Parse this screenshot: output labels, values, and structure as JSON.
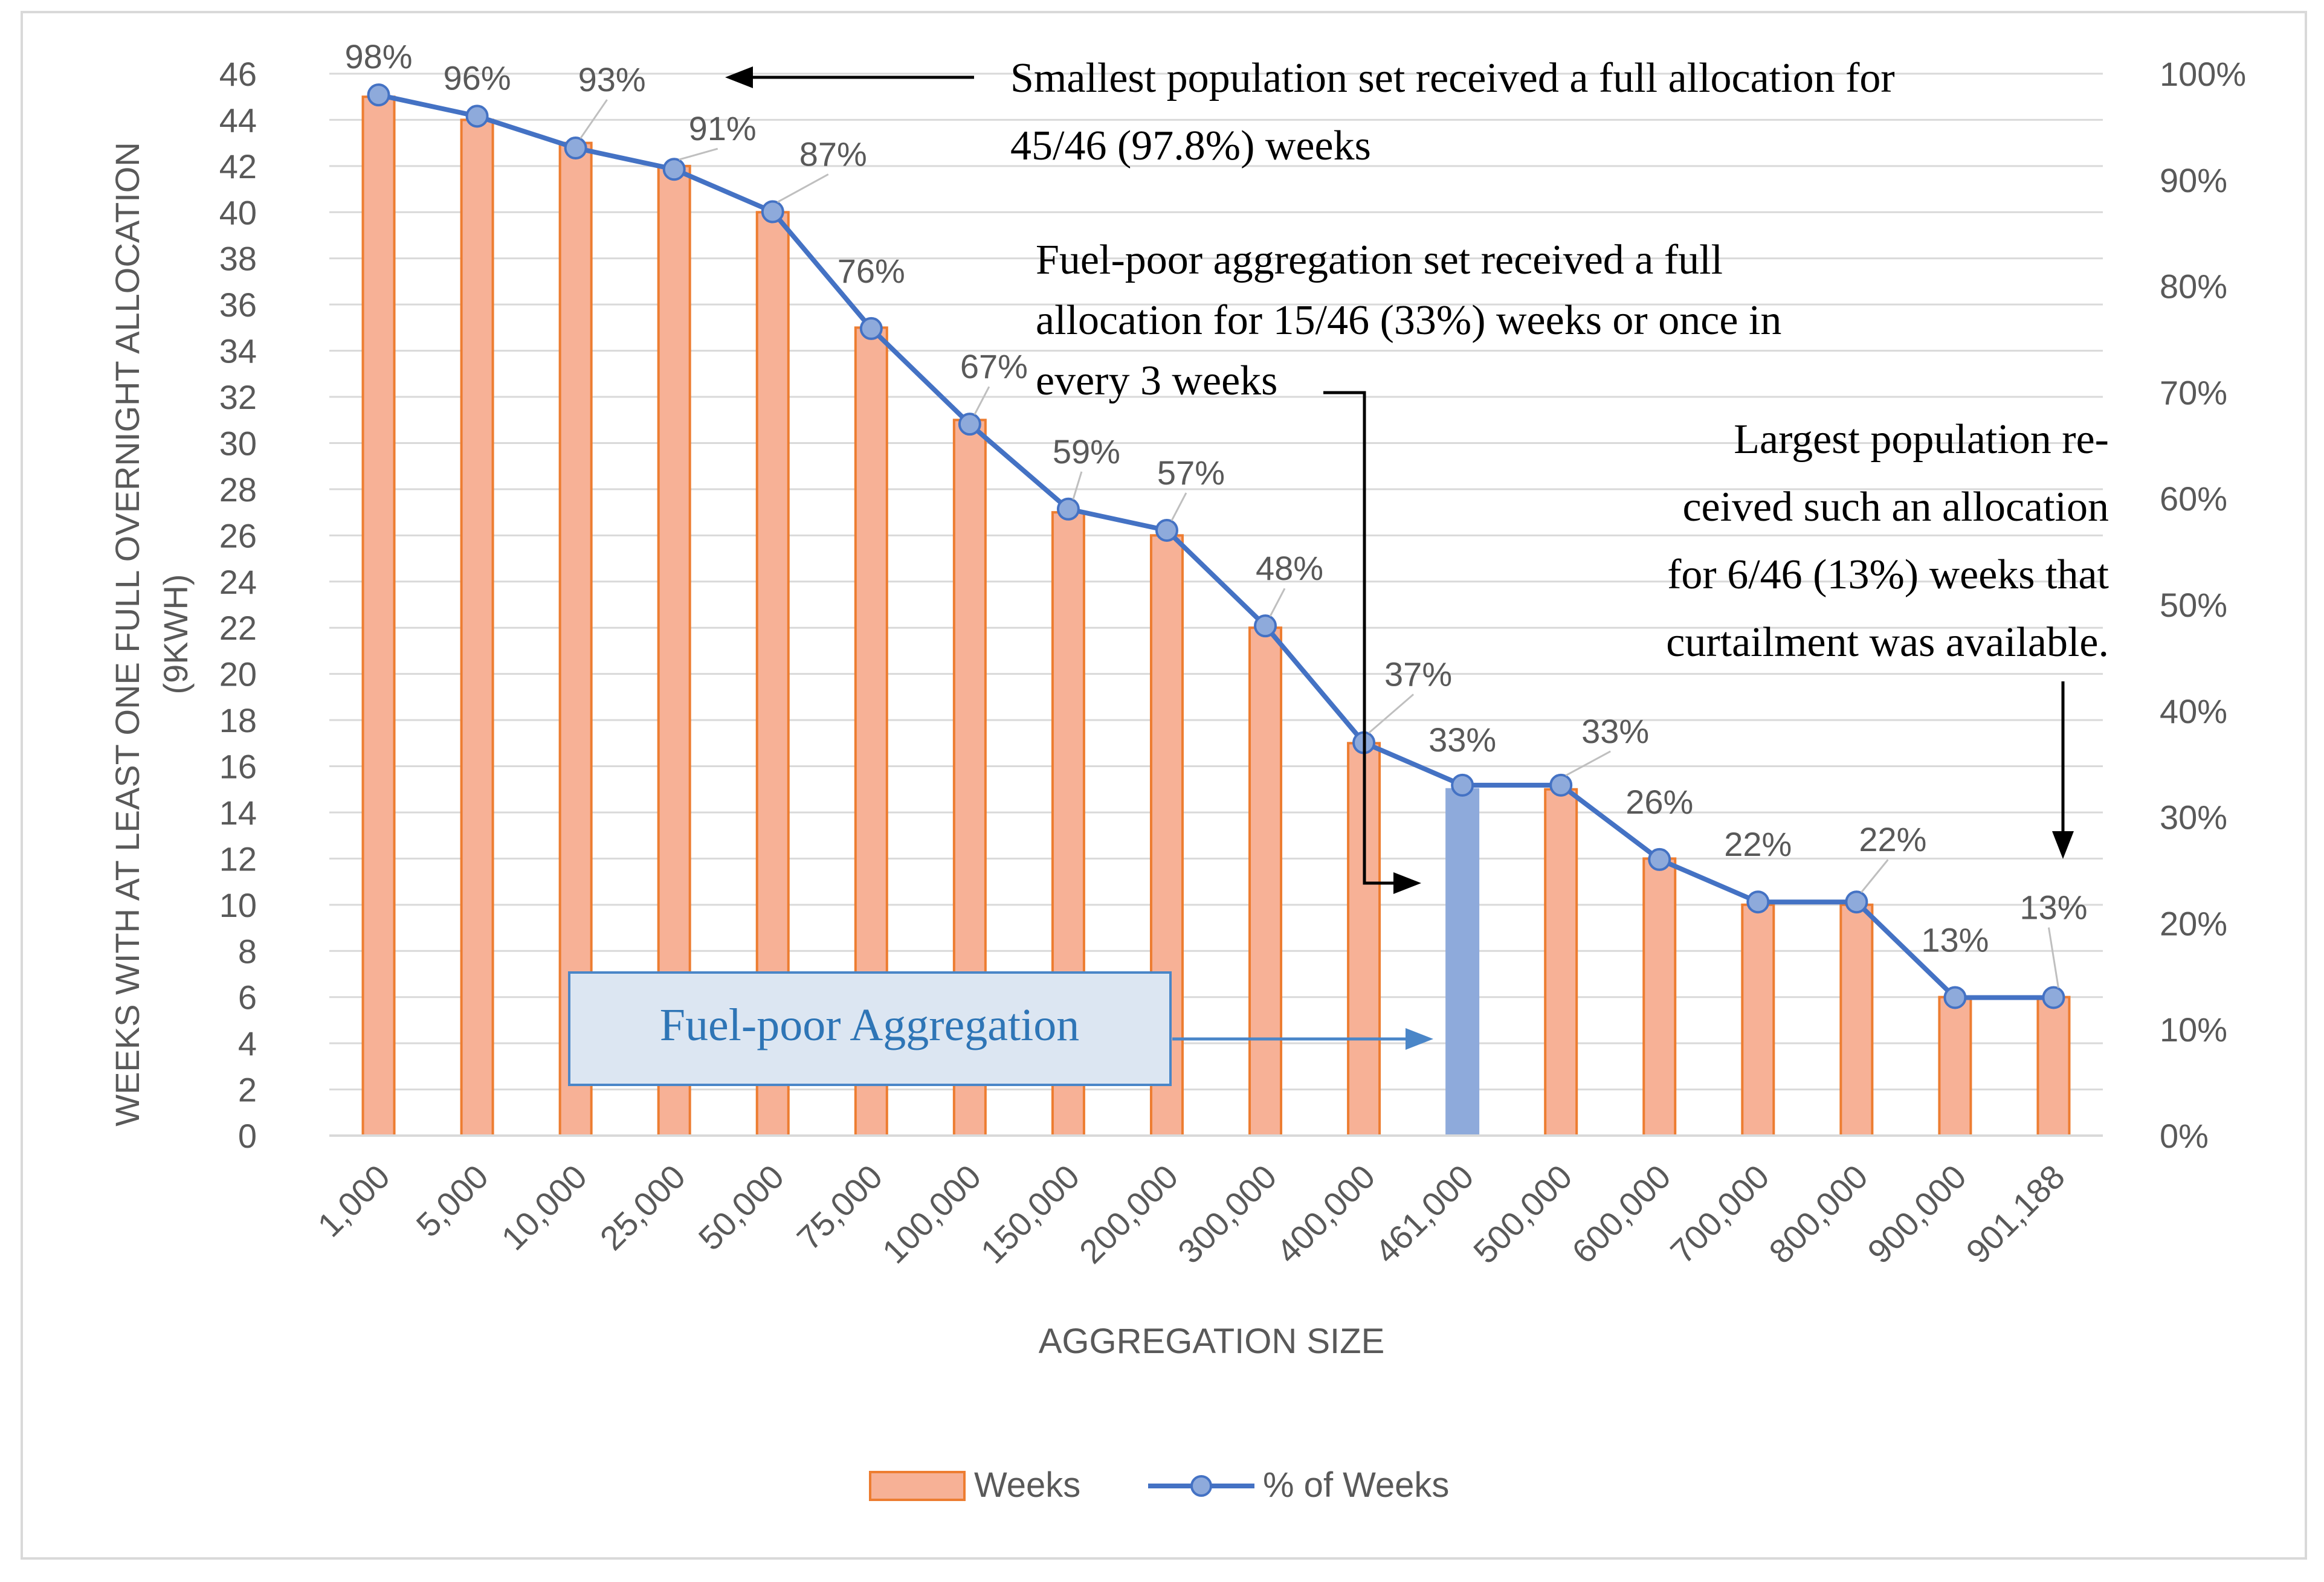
{
  "chart_data": {
    "type": "bar",
    "categories": [
      "1,000",
      "5,000",
      "10,000",
      "25,000",
      "50,000",
      "75,000",
      "100,000",
      "150,000",
      "200,000",
      "300,000",
      "400,000",
      "461,000",
      "500,000",
      "600,000",
      "700,000",
      "800,000",
      "900,000",
      "901,188"
    ],
    "series": [
      {
        "name": "Weeks",
        "kind": "bar",
        "axis": "left",
        "values": [
          45,
          44,
          43,
          42,
          40,
          35,
          31,
          27,
          26,
          22,
          17,
          15,
          15,
          12,
          10,
          10,
          6,
          6
        ]
      },
      {
        "name": "% of Weeks",
        "kind": "line",
        "axis": "right",
        "values": [
          98,
          96,
          93,
          91,
          87,
          76,
          67,
          59,
          57,
          48,
          37,
          33,
          33,
          26,
          22,
          22,
          13,
          13
        ]
      }
    ],
    "highlight_category": "461,000",
    "data_labels": [
      "98%",
      "96%",
      "93%",
      "91%",
      "87%",
      "76%",
      "67%",
      "59%",
      "57%",
      "48%",
      "37%",
      "33%",
      "33%",
      "26%",
      "22%",
      "22%",
      "13%",
      "13%"
    ],
    "xlabel": "AGGREGATION SIZE",
    "ylabel_line1": "WEEKS WITH AT LEAST ONE FULL OVERNIGHT ALLOCATION",
    "ylabel_line2": "(9KWH)",
    "ylim": [
      0,
      46
    ],
    "y_ticks": [
      "0",
      "2",
      "4",
      "6",
      "8",
      "10",
      "12",
      "14",
      "16",
      "18",
      "20",
      "22",
      "24",
      "26",
      "28",
      "30",
      "32",
      "34",
      "36",
      "38",
      "40",
      "42",
      "44",
      "46"
    ],
    "y2lim": [
      0,
      100
    ],
    "y2_ticks": [
      "0%",
      "10%",
      "20%",
      "30%",
      "40%",
      "50%",
      "60%",
      "70%",
      "80%",
      "90%",
      "100%"
    ],
    "legend": [
      {
        "name": "Weeks"
      },
      {
        "name": "% of Weeks"
      }
    ],
    "legend_position": "bottom",
    "grid": true,
    "annotations": {
      "smallest": [
        "Smallest population set received a full allocation for",
        "45/46 (97.8%) weeks"
      ],
      "fuel_poor": [
        "Fuel-poor aggregation set received a full",
        "allocation for 15/46 (33%) weeks or once in",
        "every 3 weeks"
      ],
      "largest": [
        "Largest population re-",
        "ceived such an allocation",
        "for 6/46 (13%) weeks that",
        "curtailment was available."
      ],
      "box_label": "Fuel-poor Aggregation"
    },
    "colors": {
      "bar_fill": "#f7b196",
      "bar_stroke": "#ed7d31",
      "highlight_fill": "#8eaadb",
      "line": "#4472c4",
      "marker": "#8eaadb",
      "grid": "#d9d9d9",
      "text": "#595959",
      "box_fill": "#dce6f2",
      "box_stroke": "#4a86c8",
      "box_text": "#2e75b6"
    }
  }
}
